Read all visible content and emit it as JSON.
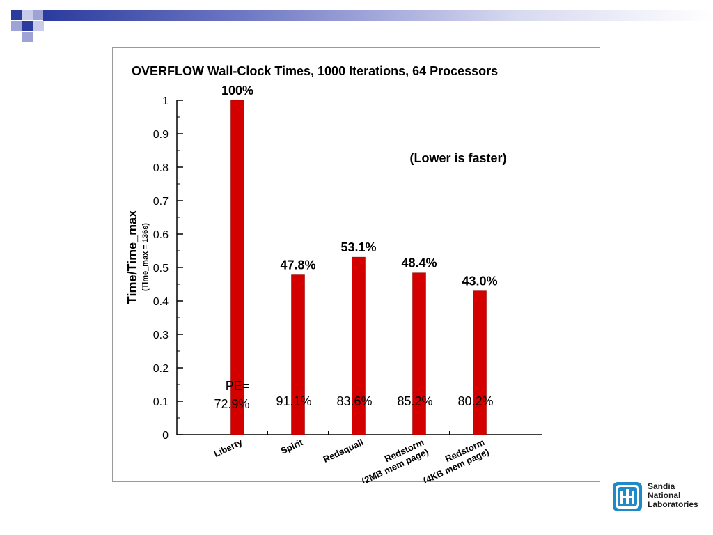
{
  "theme": {
    "bar_color": "#d40000",
    "bar_edge": "#8a0000",
    "logo_blue": "#1f8ac8"
  },
  "chart_data": {
    "type": "bar",
    "title": "OVERFLOW Wall-Clock Times, 1000 Iterations, 64 Processors",
    "ylabel": "Time/Time_max",
    "ylabel_sub": "(Time_max = 136s)",
    "ylim": [
      0,
      1
    ],
    "yticks": [
      "0",
      "0.1",
      "0.2",
      "0.3",
      "0.4",
      "0.5",
      "0.6",
      "0.7",
      "0.8",
      "0.9",
      "1"
    ],
    "categories": [
      "Liberty",
      "Spirit",
      "Redsquall",
      "Redstorm|(2MB mem page)",
      "Redstorm|(4KB mem page)"
    ],
    "values": [
      1.0,
      0.478,
      0.531,
      0.484,
      0.43
    ],
    "value_labels": [
      "100%",
      "47.8%",
      "53.1%",
      "48.4%",
      "43.0%"
    ],
    "pe_prefix": "PE=",
    "pe_labels": [
      "72.9%",
      "91.1%",
      "83.6%",
      "85.2%",
      "80.2%"
    ],
    "annotation": "(Lower is faster)",
    "grid": false,
    "legend": "none"
  },
  "logo": {
    "icon": "sandia-thunderbird-icon",
    "line1": "Sandia",
    "line2": "National",
    "line3": "Laboratories"
  }
}
